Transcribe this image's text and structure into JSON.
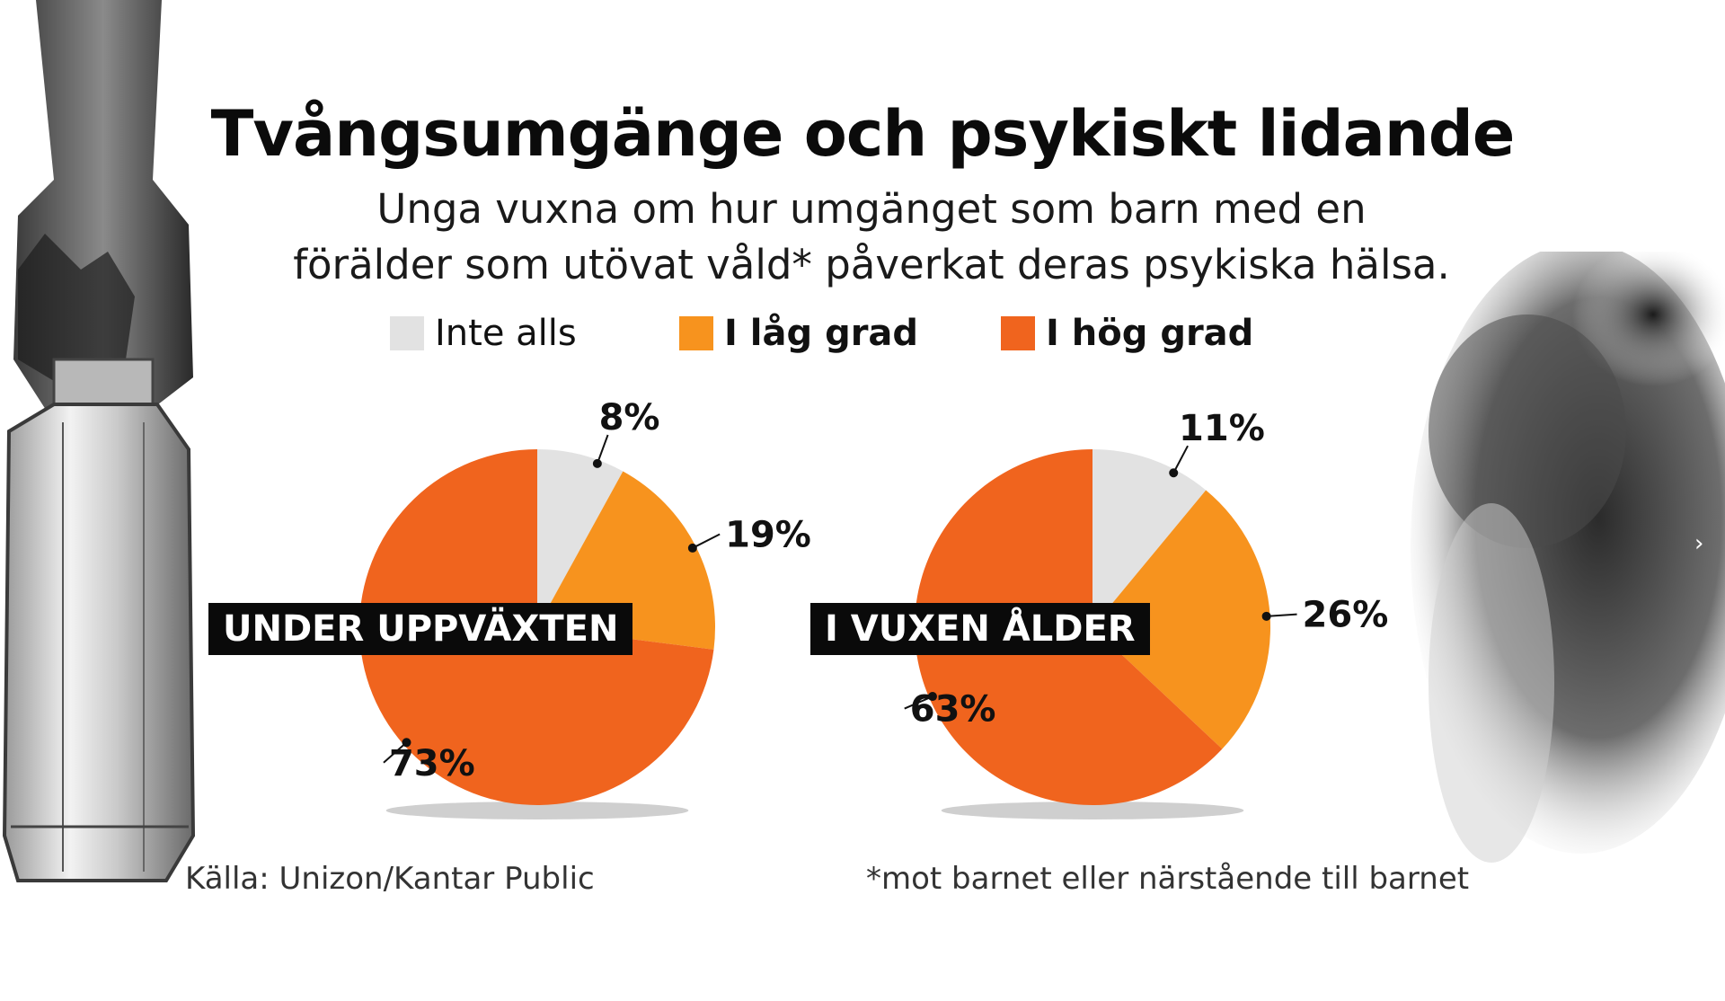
{
  "title": "Tvångsumgänge och psykiskt lidande",
  "subtitle_lines": [
    "Unga vuxna om hur umgänget som barn med en",
    "förälder som utövat våld* påverkat deras psykiska hälsa."
  ],
  "legend": [
    {
      "label": "Inte alls",
      "color": "#e2e2e2"
    },
    {
      "label": "I låg grad",
      "color": "#f7931e"
    },
    {
      "label": "I hög grad",
      "color": "#f0641e"
    }
  ],
  "chart_data": [
    {
      "type": "pie",
      "title": "UNDER UPPVÄXTEN",
      "categories": [
        "Inte alls",
        "I låg grad",
        "I hög grad"
      ],
      "values": [
        8,
        19,
        73
      ],
      "labels": [
        "8%",
        "19%",
        "73%"
      ]
    },
    {
      "type": "pie",
      "title": "I VUXEN ÅLDER",
      "categories": [
        "Inte alls",
        "I låg grad",
        "I hög grad"
      ],
      "values": [
        11,
        26,
        63
      ],
      "labels": [
        "11%",
        "26%",
        "63%"
      ]
    }
  ],
  "source": "Källa: Unizon/Kantar Public",
  "footnote": "*mot barnet eller närstående till barnet",
  "icons": {
    "next_arrow": "chevron-right-icon"
  }
}
